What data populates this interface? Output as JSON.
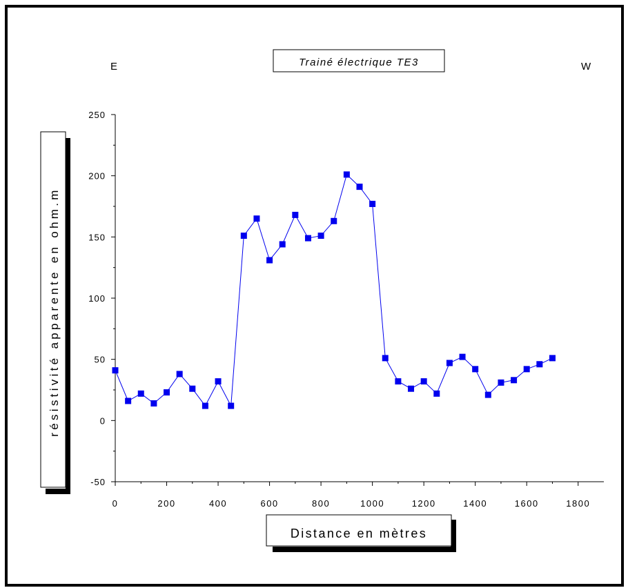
{
  "chart_data": {
    "type": "scatter",
    "title": "Trainé électrique TE3",
    "left_label": "E",
    "right_label": "W",
    "xlabel": "Distance en mètres",
    "ylabel": "résistivité apparente en ohm.m",
    "xlim": [
      0,
      1900
    ],
    "ylim": [
      -50,
      250
    ],
    "xticks": [
      0,
      200,
      400,
      600,
      800,
      1000,
      1200,
      1400,
      1600,
      1800
    ],
    "yticks": [
      -50,
      0,
      50,
      100,
      150,
      200,
      250
    ],
    "grid": false,
    "colors": {
      "series": "#0000ee",
      "frame": "#000000"
    },
    "series": [
      {
        "x": [
          0,
          50,
          100,
          150,
          200,
          250,
          300,
          350,
          400,
          450,
          500,
          550,
          600,
          650,
          700,
          750,
          800,
          850,
          900,
          950,
          1000,
          1050,
          1100,
          1150,
          1200,
          1250,
          1300,
          1350,
          1400,
          1450,
          1500,
          1550,
          1600,
          1650,
          1700
        ],
        "y": [
          41,
          16,
          22,
          14,
          23,
          38,
          26,
          12,
          32,
          12,
          151,
          165,
          131,
          144,
          168,
          149,
          151,
          163,
          201,
          191,
          177,
          51,
          32,
          26,
          32,
          22,
          47,
          52,
          42,
          21,
          31,
          33,
          42,
          46,
          51
        ]
      }
    ]
  }
}
